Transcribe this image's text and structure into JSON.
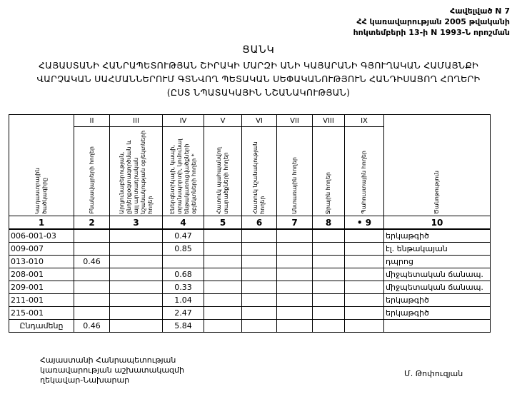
{
  "appendix": [
    "Հավելված N 7",
    "ՀՀ կառավարության 2005 թվականի",
    "հոկտեմբերի 13-ի N 1993-Ն որոշման"
  ],
  "title": "ՑԱՆԿ",
  "subtitle": [
    "ՀԱՅԱՍՏԱՆԻ ՀԱՆՐԱՊԵՏՈՒԹՅԱՆ ՇԻՐԱԿԻ ՄԱՐԶԻ ԱՆԻ ԿԱՅԱՐԱՆԻ ԳՅՈՒՂԱԿԱՆ ՀԱՄԱՅՆՔԻ",
    "ՎԱՐՉԱԿԱՆ ՍԱՀՄԱՆՆԵՐՈՒՄ ԳՏՆՎՈՂ ՊԵՏԱԿԱՆ ՍԵՓԱԿԱՆՈՒԹՅՈՒՆ ՀԱՆԴԻՍԱՑՈՂ ՀՈՂԵՐԻ",
    "(ԸՍՏ ՆՊԱՏԱԿԱՅԻՆ ՆՇԱՆԱԿՈՒԹՅԱՆ)"
  ],
  "table": {
    "roman": [
      "II",
      "III",
      "IV",
      "V",
      "VI",
      "VII",
      "VIII",
      "IX"
    ],
    "headers": [
      "Կադաստրային ծածկագիրը",
      "Բնակավայրերի հողեր",
      "Արդյունաբերության, ընդերքօգտագործման և այլ արտադրական նշանակության օբյեկտների հողեր",
      "Էներգետիկայի, կապի, տրանսպորտի, կոմունալ ենթակառուցվածքների օբյեկտների հողեր *",
      "Հատուկ պահպանվող տարածքների հողեր",
      "Հատուկ նշանակության հողեր",
      "Անտառային հողեր",
      "Ջրային հողեր",
      "Պահուստային հողեր",
      "Ծանոթություն"
    ],
    "numbers": [
      "1",
      "2",
      "3",
      "4",
      "5",
      "6",
      "7",
      "8",
      "• 9",
      "10"
    ],
    "rows": [
      [
        "006-001-03",
        "",
        "",
        "0.47",
        "",
        "",
        "",
        "",
        "",
        "երկաթգիծ"
      ],
      [
        "009-007",
        "",
        "",
        "0.85",
        "",
        "",
        "",
        "",
        "",
        "էլ. ենթակայան"
      ],
      [
        "013-010",
        "0.46",
        "",
        "",
        "",
        "",
        "",
        "",
        "",
        "դպրոց"
      ],
      [
        "208-001",
        "",
        "",
        "0.68",
        "",
        "",
        "",
        "",
        "",
        "միջպետական ճանապ."
      ],
      [
        "209-001",
        "",
        "",
        "0.33",
        "",
        "",
        "",
        "",
        "",
        "միջպետական ճանապ."
      ],
      [
        "211-001",
        "",
        "",
        "1.04",
        "",
        "",
        "",
        "",
        "",
        "երկաթգիծ"
      ],
      [
        "215-001",
        "",
        "",
        "2.47",
        "",
        "",
        "",
        "",
        "",
        "երկաթգիծ"
      ],
      [
        "Ընդամենը",
        "0.46",
        "",
        "5.84",
        "",
        "",
        "",
        "",
        "",
        ""
      ]
    ]
  },
  "signature": {
    "position": [
      "Հայաստանի Հանրապետության",
      "կառավարության աշխատակազմի",
      "ղեկավար-Նախարար"
    ],
    "name": "Մ. Թոփուզյան"
  }
}
